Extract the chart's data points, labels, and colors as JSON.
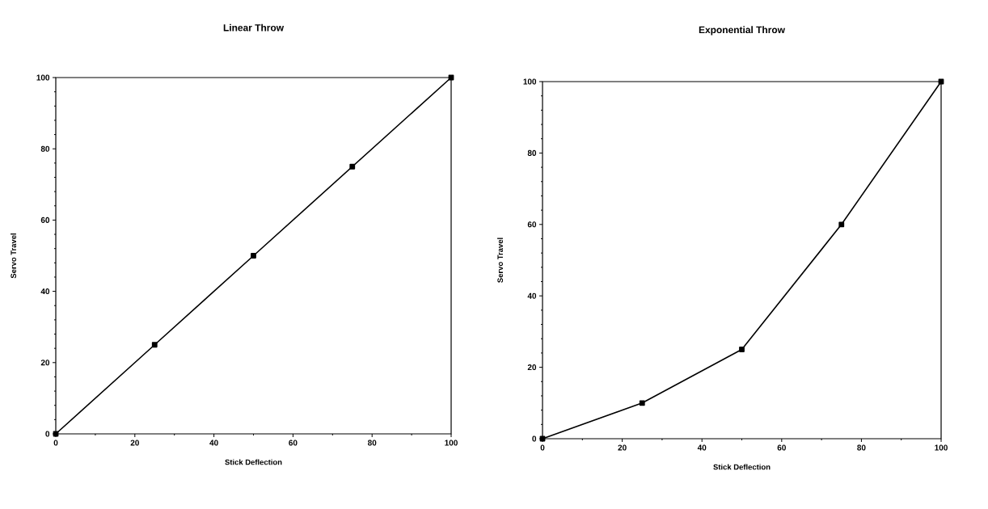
{
  "chart_data": [
    {
      "type": "line",
      "title": "Linear Throw",
      "xlabel": "Stick Deflection",
      "ylabel": "Servo Travel",
      "x": [
        0,
        25,
        50,
        75,
        100
      ],
      "values": [
        0,
        25,
        50,
        75,
        100
      ],
      "color": "#000000",
      "marker": "square",
      "line_style": "solid",
      "xlim": [
        0,
        100
      ],
      "ylim": [
        0,
        100
      ],
      "xticks": [
        0,
        20,
        40,
        60,
        80,
        100
      ],
      "yticks": [
        0,
        20,
        40,
        60,
        80,
        100
      ]
    },
    {
      "type": "line",
      "title": "Exponential Throw",
      "xlabel": "Stick Deflection",
      "ylabel": "Servo Travel",
      "x": [
        0,
        25,
        50,
        75,
        100
      ],
      "values": [
        0,
        10,
        25,
        60,
        100
      ],
      "color": "#000000",
      "marker": "square",
      "line_style": "solid",
      "xlim": [
        0,
        100
      ],
      "ylim": [
        0,
        100
      ],
      "xticks": [
        0,
        20,
        40,
        60,
        80,
        100
      ],
      "yticks": [
        0,
        20,
        40,
        60,
        80,
        100
      ]
    }
  ]
}
